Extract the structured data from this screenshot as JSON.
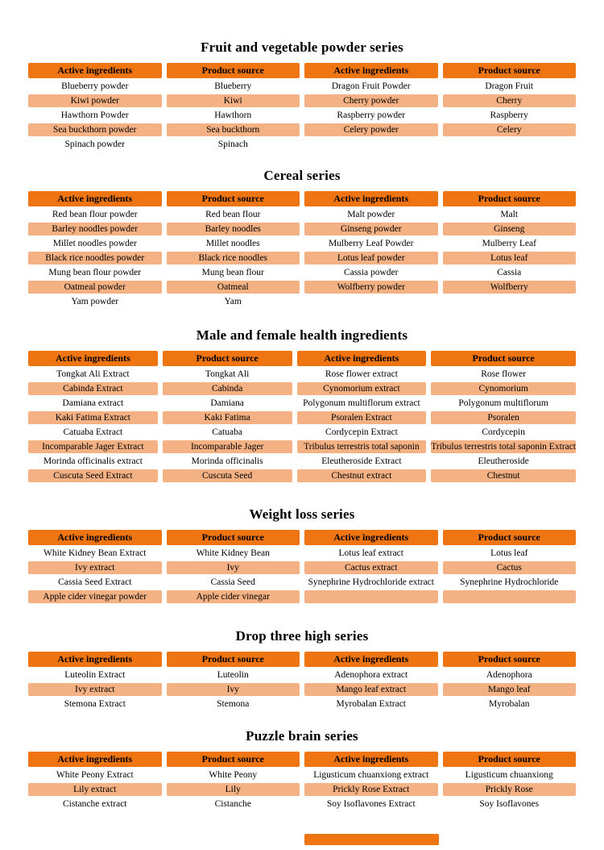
{
  "colors": {
    "page_bg": "#FFFFFF",
    "header_bg": "#EF7412",
    "row_alt_bg": "#F4B183",
    "text": "#000000"
  },
  "table_headers": [
    "Active ingredients",
    "Product source",
    "Active ingredients",
    "Product source"
  ],
  "sections": [
    {
      "title": "Fruit and vegetable powder series",
      "rows": [
        [
          "Blueberry powder",
          "Blueberry",
          "Dragon Fruit Powder",
          "Dragon Fruit"
        ],
        [
          "Kiwi powder",
          "Kiwi",
          "Cherry powder",
          "Cherry"
        ],
        [
          "Hawthorn Powder",
          "Hawthorn",
          "Raspberry powder",
          "Raspberry"
        ],
        [
          "Sea buckthorn powder",
          "Sea buckthorn",
          "Celery powder",
          "Celery"
        ],
        [
          "Spinach powder",
          "Spinach",
          "",
          ""
        ]
      ]
    },
    {
      "title": "Cereal series",
      "rows": [
        [
          "Red bean flour powder",
          "Red bean flour",
          "Malt powder",
          "Malt"
        ],
        [
          "Barley noodles powder",
          "Barley noodles",
          "Ginseng powder",
          "Ginseng"
        ],
        [
          "Millet noodles powder",
          "Millet noodles",
          "Mulberry Leaf Powder",
          "Mulberry Leaf"
        ],
        [
          "Black rice noodles powder",
          "Black rice noodles",
          "Lotus leaf powder",
          "Lotus leaf"
        ],
        [
          "Mung bean flour powder",
          "Mung bean flour",
          "Cassia powder",
          "Cassia"
        ],
        [
          "Oatmeal powder",
          "Oatmeal",
          "Wolfberry powder",
          "Wolfberry"
        ],
        [
          "Yam powder",
          "Yam",
          "",
          ""
        ]
      ]
    },
    {
      "title": "Male and female health ingredients",
      "rows": [
        [
          "Tongkat Ali Extract",
          "Tongkat Ali",
          "Rose flower extract",
          "Rose flower"
        ],
        [
          "Cabinda Extract",
          "Cabinda",
          "Cynomorium extract",
          "Cynomorium"
        ],
        [
          "Damiana extract",
          "Damiana",
          "Polygonum multiflorum extract",
          "Polygonum multiflorum"
        ],
        [
          "Kaki Fatima Extract",
          "Kaki Fatima",
          "Psoralen Extract",
          "Psoralen"
        ],
        [
          "Catuaba Extract",
          "Catuaba",
          "Cordycepin Extract",
          "Cordycepin"
        ],
        [
          "Incomparable Jager Extract",
          "Incomparable Jager",
          "Tribulus terrestris total saponin",
          "Tribulus terrestris total saponin Extract"
        ],
        [
          "Morinda officinalis extract",
          "Morinda officinalis",
          "Eleutheroside Extract",
          "Eleutheroside"
        ],
        [
          "Cuscuta Seed Extract",
          "Cuscuta Seed",
          "Chestnut extract",
          "Chestnut"
        ]
      ]
    },
    {
      "title": "Weight loss series",
      "rows": [
        [
          "White Kidney Bean Extract",
          "White Kidney Bean",
          "Lotus leaf extract",
          "Lotus leaf"
        ],
        [
          "Ivy extract",
          "Ivy",
          "Cactus extract",
          "Cactus"
        ],
        [
          "Cassia Seed Extract",
          "Cassia Seed",
          "Synephrine Hydrochloride extract",
          "Synephrine Hydrochloride"
        ],
        [
          "Apple cider vinegar powder",
          "Apple cider vinegar",
          "",
          ""
        ]
      ]
    },
    {
      "title": "Drop three high series",
      "rows": [
        [
          "Luteolin Extract",
          "Luteolin",
          "Adenophora extract",
          "Adenophora"
        ],
        [
          "Ivy extract",
          "Ivy",
          "Mango leaf extract",
          "Mango leaf"
        ],
        [
          "Stemona Extract",
          "Stemona",
          "Myrobalan Extract",
          "Myrobalan"
        ]
      ]
    },
    {
      "title": "Puzzle brain series",
      "rows": [
        [
          "White Peony Extract",
          "White Peony",
          "Ligusticum chuanxiong extract",
          "Ligusticum chuanxiong"
        ],
        [
          "Lily extract",
          "Lily",
          "Prickly Rose Extract",
          "Prickly Rose"
        ],
        [
          "Cistanche extract",
          "Cistanche",
          "Soy Isoflavones Extract",
          "Soy Isoflavones"
        ]
      ]
    }
  ]
}
